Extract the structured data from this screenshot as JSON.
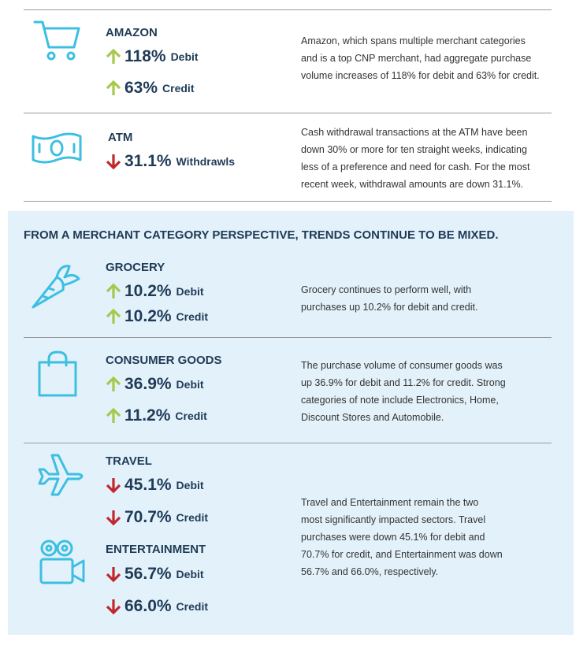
{
  "top_rows": [
    {
      "entries": [
        {
          "label": "AMAZON",
          "metrics": [
            {
              "direction": "up",
              "value": "118%",
              "unit": "Debit"
            },
            {
              "direction": "up",
              "value": "63%",
              "unit": "Credit"
            }
          ]
        }
      ],
      "description": [
        "Amazon, which spans multiple merchant categories",
        "and is a top CNP merchant, had aggregate purchase",
        "volume increases of 118% for debit and 63% for credit."
      ]
    },
    {
      "entries": [
        {
          "label": "ATM",
          "metrics": [
            {
              "direction": "down",
              "value": "31.1%",
              "unit": "Withdrawls"
            }
          ]
        }
      ],
      "description": [
        "Cash withdrawal transactions at the ATM have been",
        "down 30% or more for ten straight weeks, indicating",
        "less of a preference and need for cash. For the most",
        "recent week, withdrawal amounts are down 31.1%."
      ]
    }
  ],
  "section": {
    "title": "FROM A MERCHANT CATEGORY PERSPECTIVE, TRENDS CONTINUE TO BE MIXED.",
    "rows": [
      {
        "entries": [
          {
            "label": "GROCERY",
            "metrics": [
              {
                "direction": "up",
                "value": "10.2%",
                "unit": "Debit"
              },
              {
                "direction": "up",
                "value": "10.2%",
                "unit": "Credit"
              }
            ]
          }
        ],
        "description": [
          "Grocery continues to perform well, with",
          "purchases up 10.2% for debit and credit."
        ]
      },
      {
        "entries": [
          {
            "label": "CONSUMER GOODS",
            "metrics": [
              {
                "direction": "up",
                "value": "36.9%",
                "unit": "Debit"
              },
              {
                "direction": "up",
                "value": "11.2%",
                "unit": "Credit"
              }
            ]
          }
        ],
        "description": [
          "The purchase volume of consumer goods was",
          "up 36.9% for debit and 11.2% for credit.  Strong",
          "categories of note include Electronics, Home,",
          "Discount Stores and Automobile."
        ]
      },
      {
        "entries": [
          {
            "label": "TRAVEL",
            "metrics": [
              {
                "direction": "down",
                "value": "45.1%",
                "unit": "Debit"
              },
              {
                "direction": "down",
                "value": "70.7%",
                "unit": "Credit"
              }
            ]
          },
          {
            "label": "ENTERTAINMENT",
            "metrics": [
              {
                "direction": "down",
                "value": "56.7%",
                "unit": "Debit"
              },
              {
                "direction": "down",
                "value": "66.0%",
                "unit": "Credit"
              }
            ]
          }
        ],
        "description": [
          "Travel and Entertainment remain the two",
          "most significantly impacted sectors. Travel",
          "purchases were down 45.1% for debit and",
          "70.7% for credit, and Entertainment was down",
          "56.7% and 66.0%, respectively."
        ]
      }
    ]
  }
}
